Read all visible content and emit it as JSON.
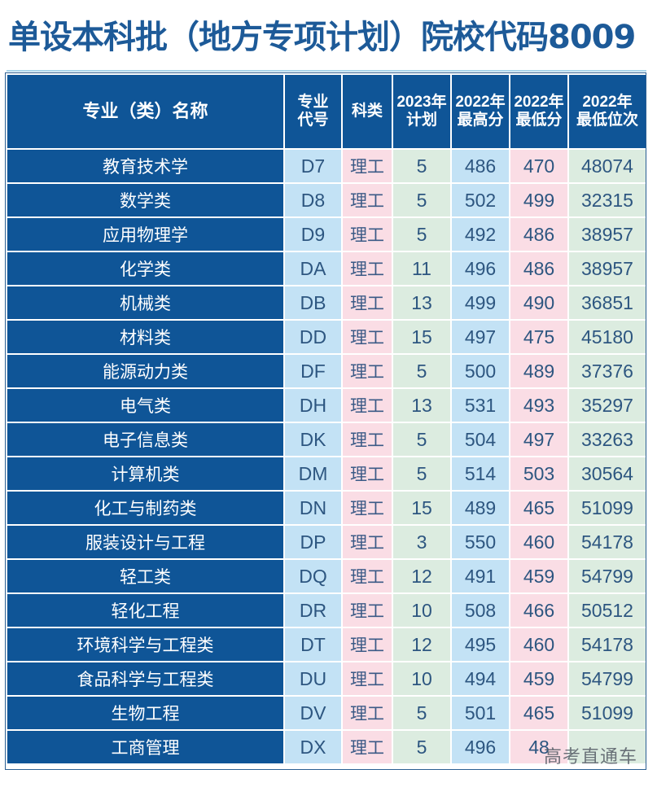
{
  "title": "单设本科批（地方专项计划）院校代码8009",
  "table": {
    "headers": {
      "name": "专业（类）名称",
      "code_l1": "专业",
      "code_l2": "代号",
      "type": "科类",
      "plan_l1": "2023年",
      "plan_l2": "计划",
      "max_l1": "2022年",
      "max_l2": "最高分",
      "min_l1": "2022年",
      "min_l2": "最低分",
      "rank_l1": "2022年",
      "rank_l2": "最低位次"
    },
    "rows": [
      {
        "name": "教育技术学",
        "code": "D7",
        "type": "理工",
        "plan": "5",
        "max": "486",
        "min": "470",
        "rank": "48074"
      },
      {
        "name": "数学类",
        "code": "D8",
        "type": "理工",
        "plan": "5",
        "max": "502",
        "min": "499",
        "rank": "32315"
      },
      {
        "name": "应用物理学",
        "code": "D9",
        "type": "理工",
        "plan": "5",
        "max": "492",
        "min": "486",
        "rank": "38957"
      },
      {
        "name": "化学类",
        "code": "DA",
        "type": "理工",
        "plan": "11",
        "max": "496",
        "min": "486",
        "rank": "38957"
      },
      {
        "name": "机械类",
        "code": "DB",
        "type": "理工",
        "plan": "13",
        "max": "499",
        "min": "490",
        "rank": "36851"
      },
      {
        "name": "材料类",
        "code": "DD",
        "type": "理工",
        "plan": "15",
        "max": "497",
        "min": "475",
        "rank": "45180"
      },
      {
        "name": "能源动力类",
        "code": "DF",
        "type": "理工",
        "plan": "5",
        "max": "500",
        "min": "489",
        "rank": "37376"
      },
      {
        "name": "电气类",
        "code": "DH",
        "type": "理工",
        "plan": "13",
        "max": "531",
        "min": "493",
        "rank": "35297"
      },
      {
        "name": "电子信息类",
        "code": "DK",
        "type": "理工",
        "plan": "5",
        "max": "504",
        "min": "497",
        "rank": "33263"
      },
      {
        "name": "计算机类",
        "code": "DM",
        "type": "理工",
        "plan": "5",
        "max": "514",
        "min": "503",
        "rank": "30564"
      },
      {
        "name": "化工与制药类",
        "code": "DN",
        "type": "理工",
        "plan": "15",
        "max": "489",
        "min": "465",
        "rank": "51099"
      },
      {
        "name": "服装设计与工程",
        "code": "DP",
        "type": "理工",
        "plan": "3",
        "max": "550",
        "min": "460",
        "rank": "54178"
      },
      {
        "name": "轻工类",
        "code": "DQ",
        "type": "理工",
        "plan": "12",
        "max": "491",
        "min": "459",
        "rank": "54799"
      },
      {
        "name": "轻化工程",
        "code": "DR",
        "type": "理工",
        "plan": "10",
        "max": "508",
        "min": "466",
        "rank": "50512"
      },
      {
        "name": "环境科学与工程类",
        "code": "DT",
        "type": "理工",
        "plan": "12",
        "max": "495",
        "min": "460",
        "rank": "54178"
      },
      {
        "name": "食品科学与工程类",
        "code": "DU",
        "type": "理工",
        "plan": "10",
        "max": "494",
        "min": "459",
        "rank": "54799"
      },
      {
        "name": "生物工程",
        "code": "DV",
        "type": "理工",
        "plan": "5",
        "max": "501",
        "min": "465",
        "rank": "51099"
      },
      {
        "name": "工商管理",
        "code": "DX",
        "type": "理工",
        "plan": "5",
        "max": "496",
        "min": "48",
        "rank": ""
      }
    ]
  },
  "watermark": "高考直通车",
  "colors": {
    "header_blue": "#0f5597",
    "title_blue": "#1d5a98",
    "cell_blue": "#c3e2f5",
    "cell_pink": "#fadde5",
    "cell_green": "#dcece0"
  }
}
